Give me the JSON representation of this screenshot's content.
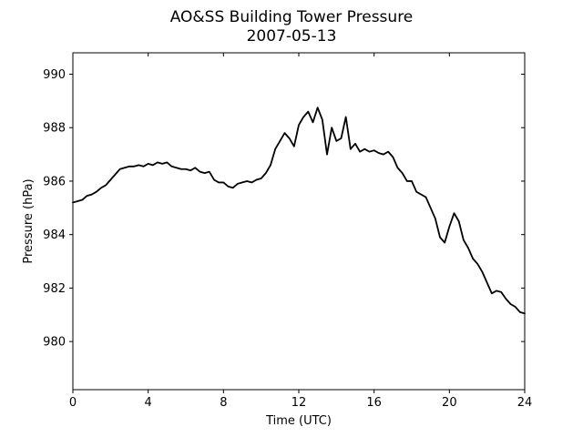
{
  "chart_data": {
    "type": "line",
    "title": "AO&SS Building Tower Pressure",
    "subtitle": "2007-05-13",
    "xlabel": "Time (UTC)",
    "ylabel": "Pressure (hPa)",
    "xlim": [
      0,
      24
    ],
    "ylim": [
      978.2,
      990.8
    ],
    "x_ticks": [
      0,
      4,
      8,
      12,
      16,
      20,
      24
    ],
    "y_ticks": [
      980,
      982,
      984,
      986,
      988,
      990
    ],
    "grid": false,
    "line_color": "#000000",
    "series": [
      {
        "x": [
          0,
          0.25,
          0.5,
          0.75,
          1,
          1.25,
          1.5,
          1.75,
          2,
          2.25,
          2.5,
          2.75,
          3,
          3.25,
          3.5,
          3.75,
          4,
          4.25,
          4.5,
          4.75,
          5,
          5.25,
          5.5,
          5.75,
          6,
          6.25,
          6.5,
          6.75,
          7,
          7.25,
          7.5,
          7.75,
          8,
          8.25,
          8.5,
          8.75,
          9,
          9.25,
          9.5,
          9.75,
          10,
          10.25,
          10.5,
          10.75,
          11,
          11.25,
          11.5,
          11.75,
          12,
          12.25,
          12.5,
          12.75,
          13,
          13.25,
          13.5,
          13.75,
          14,
          14.25,
          14.5,
          14.75,
          15,
          15.25,
          15.5,
          15.75,
          16,
          16.25,
          16.5,
          16.75,
          17,
          17.25,
          17.5,
          17.75,
          18,
          18.25,
          18.5,
          18.75,
          19,
          19.25,
          19.5,
          19.75,
          20,
          20.25,
          20.5,
          20.75,
          21,
          21.25,
          21.5,
          21.75,
          22,
          22.25,
          22.5,
          22.75,
          23,
          23.25,
          23.5,
          23.75,
          24
        ],
        "y": [
          985.2,
          985.25,
          985.3,
          985.45,
          985.5,
          985.6,
          985.75,
          985.85,
          986.05,
          986.25,
          986.45,
          986.5,
          986.55,
          986.55,
          986.6,
          986.55,
          986.65,
          986.6,
          986.7,
          986.65,
          986.7,
          986.55,
          986.5,
          986.45,
          986.45,
          986.4,
          986.5,
          986.35,
          986.3,
          986.35,
          986.05,
          985.95,
          985.95,
          985.8,
          985.75,
          985.9,
          985.95,
          986.0,
          985.95,
          986.05,
          986.1,
          986.3,
          986.6,
          987.2,
          987.5,
          987.8,
          987.6,
          987.3,
          988.1,
          988.4,
          988.6,
          988.2,
          988.75,
          988.3,
          987.0,
          988.0,
          987.5,
          987.6,
          988.4,
          987.2,
          987.4,
          987.1,
          987.2,
          987.1,
          987.15,
          987.05,
          987.0,
          987.1,
          986.9,
          986.5,
          986.3,
          986.0,
          986.0,
          985.6,
          985.5,
          985.4,
          985.0,
          984.6,
          983.9,
          983.7,
          984.3,
          984.8,
          984.5,
          983.8,
          983.5,
          983.1,
          982.9,
          982.6,
          982.2,
          981.8,
          981.9,
          981.85,
          981.6,
          981.4,
          981.3,
          981.1,
          981.05
        ]
      }
    ]
  }
}
